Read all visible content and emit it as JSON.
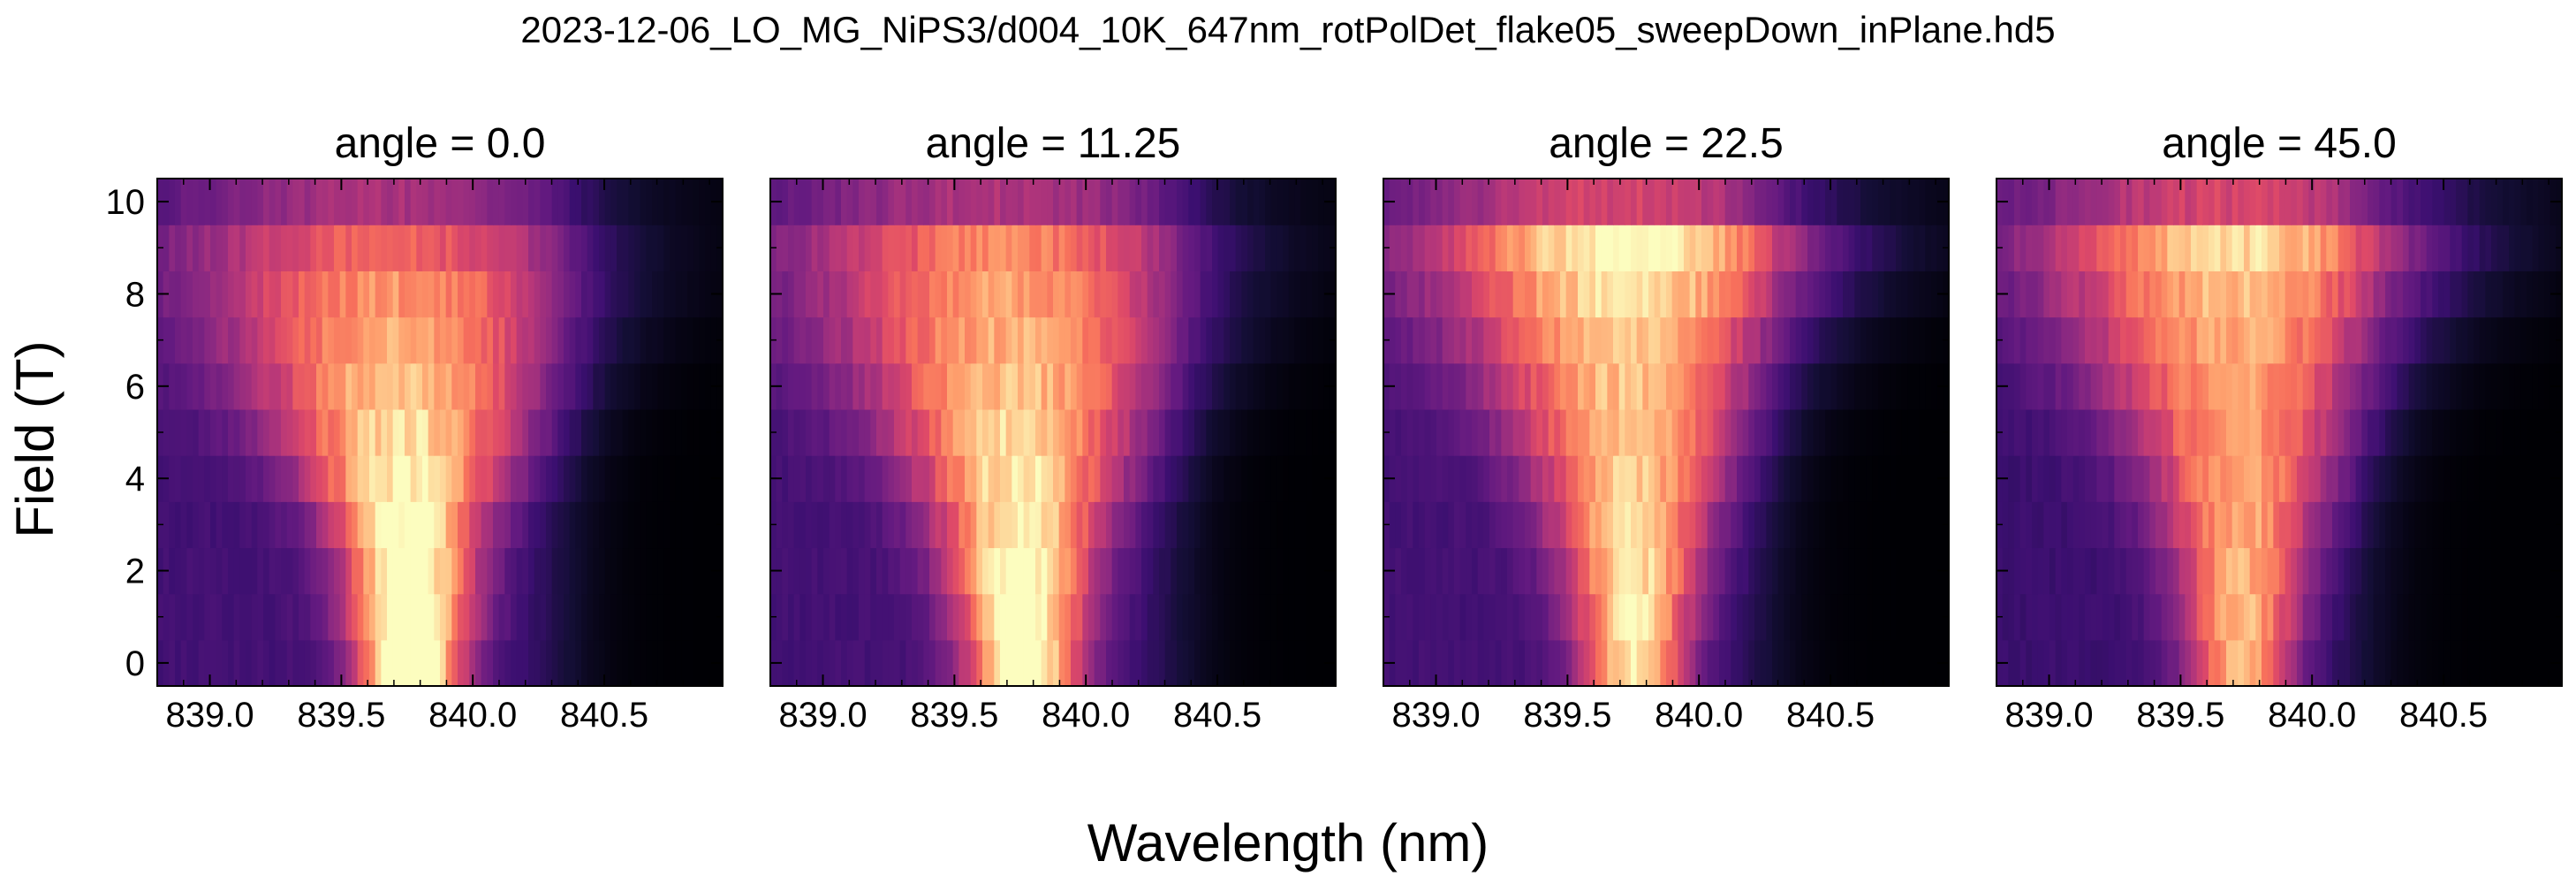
{
  "figure": {
    "suptitle": "2023-12-06_LO_MG_NiPS3/d004_10K_647nm_rotPolDet_flake05_sweepDown_inPlane.hd5",
    "xlabel": "Wavelength (nm)",
    "ylabel": "Field (T)",
    "colormap": "magma"
  },
  "chart_data": [
    {
      "type": "heatmap",
      "title": "angle = 0.0",
      "xlim": [
        838.8,
        840.95
      ],
      "ylim": [
        -0.5,
        10.5
      ],
      "x_ticks": [
        839.0,
        839.5,
        840.0,
        840.5
      ],
      "x_tick_labels": [
        "839.0",
        "839.5",
        "840.0",
        "840.5"
      ],
      "y_ticks": [
        0,
        2,
        4,
        6,
        8,
        10
      ],
      "y_tick_labels": [
        "0",
        "2",
        "4",
        "6",
        "8",
        "10"
      ],
      "fields": [
        0,
        1,
        2,
        3,
        4,
        5,
        6,
        7,
        8,
        9,
        10
      ],
      "peak_center_nm": [
        839.76,
        839.76,
        839.76,
        839.75,
        839.74,
        839.73,
        839.72,
        839.71,
        839.7,
        839.68,
        839.65
      ],
      "peak_width_nm": [
        0.14,
        0.16,
        0.17,
        0.2,
        0.26,
        0.32,
        0.38,
        0.44,
        0.5,
        0.55,
        0.6
      ],
      "peak_amplitude": [
        0.97,
        0.93,
        0.89,
        0.84,
        0.78,
        0.72,
        0.67,
        0.62,
        0.56,
        0.45,
        0.36
      ],
      "background_level": 0.22,
      "red_edge_nm": 840.35
    },
    {
      "type": "heatmap",
      "title": "angle = 11.25",
      "xlim": [
        838.8,
        840.95
      ],
      "ylim": [
        -0.5,
        10.5
      ],
      "x_ticks": [
        839.0,
        839.5,
        840.0,
        840.5
      ],
      "x_tick_labels": [
        "839.0",
        "839.5",
        "840.0",
        "840.5"
      ],
      "y_ticks": [
        0,
        2,
        4,
        6,
        8,
        10
      ],
      "y_tick_labels": [
        "0",
        "2",
        "4",
        "6",
        "8",
        "10"
      ],
      "fields": [
        0,
        1,
        2,
        3,
        4,
        5,
        6,
        7,
        8,
        9,
        10
      ],
      "peak_center_nm": [
        839.76,
        839.76,
        839.75,
        839.75,
        839.74,
        839.73,
        839.72,
        839.71,
        839.7,
        839.69,
        839.66
      ],
      "peak_width_nm": [
        0.15,
        0.17,
        0.19,
        0.22,
        0.27,
        0.33,
        0.39,
        0.45,
        0.5,
        0.55,
        0.6
      ],
      "peak_amplitude": [
        0.9,
        0.87,
        0.84,
        0.79,
        0.75,
        0.7,
        0.66,
        0.62,
        0.58,
        0.52,
        0.38
      ],
      "background_level": 0.22,
      "red_edge_nm": 840.35
    },
    {
      "type": "heatmap",
      "title": "angle = 22.5",
      "xlim": [
        838.8,
        840.95
      ],
      "ylim": [
        -0.5,
        10.5
      ],
      "x_ticks": [
        839.0,
        839.5,
        840.0,
        840.5
      ],
      "x_tick_labels": [
        "839.0",
        "839.5",
        "840.0",
        "840.5"
      ],
      "y_ticks": [
        0,
        2,
        4,
        6,
        8,
        10
      ],
      "y_tick_labels": [
        "0",
        "2",
        "4",
        "6",
        "8",
        "10"
      ],
      "fields": [
        0,
        1,
        2,
        3,
        4,
        5,
        6,
        7,
        8,
        9,
        10
      ],
      "peak_center_nm": [
        839.75,
        839.75,
        839.75,
        839.74,
        839.74,
        839.73,
        839.72,
        839.72,
        839.73,
        839.74,
        839.7
      ],
      "peak_width_nm": [
        0.14,
        0.16,
        0.18,
        0.21,
        0.25,
        0.3,
        0.36,
        0.42,
        0.48,
        0.52,
        0.58
      ],
      "peak_amplitude": [
        0.76,
        0.75,
        0.74,
        0.71,
        0.68,
        0.66,
        0.65,
        0.66,
        0.73,
        0.8,
        0.5
      ],
      "background_level": 0.22,
      "red_edge_nm": 840.25
    },
    {
      "type": "heatmap",
      "title": "angle = 45.0",
      "xlim": [
        838.8,
        840.95
      ],
      "ylim": [
        -0.5,
        10.5
      ],
      "x_ticks": [
        839.0,
        839.5,
        840.0,
        840.5
      ],
      "x_tick_labels": [
        "839.0",
        "839.5",
        "840.0",
        "840.5"
      ],
      "y_ticks": [
        0,
        2,
        4,
        6,
        8,
        10
      ],
      "y_tick_labels": [
        "0",
        "2",
        "4",
        "6",
        "8",
        "10"
      ],
      "fields": [
        0,
        1,
        2,
        3,
        4,
        5,
        6,
        7,
        8,
        9,
        10
      ],
      "peak_center_nm": [
        839.73,
        839.73,
        839.73,
        839.73,
        839.73,
        839.72,
        839.71,
        839.71,
        839.72,
        839.73,
        839.7
      ],
      "peak_width_nm": [
        0.14,
        0.16,
        0.18,
        0.21,
        0.25,
        0.3,
        0.36,
        0.42,
        0.48,
        0.53,
        0.6
      ],
      "peak_amplitude": [
        0.66,
        0.66,
        0.64,
        0.63,
        0.62,
        0.61,
        0.61,
        0.63,
        0.67,
        0.72,
        0.52
      ],
      "background_level": 0.2,
      "red_edge_nm": 840.2
    }
  ]
}
